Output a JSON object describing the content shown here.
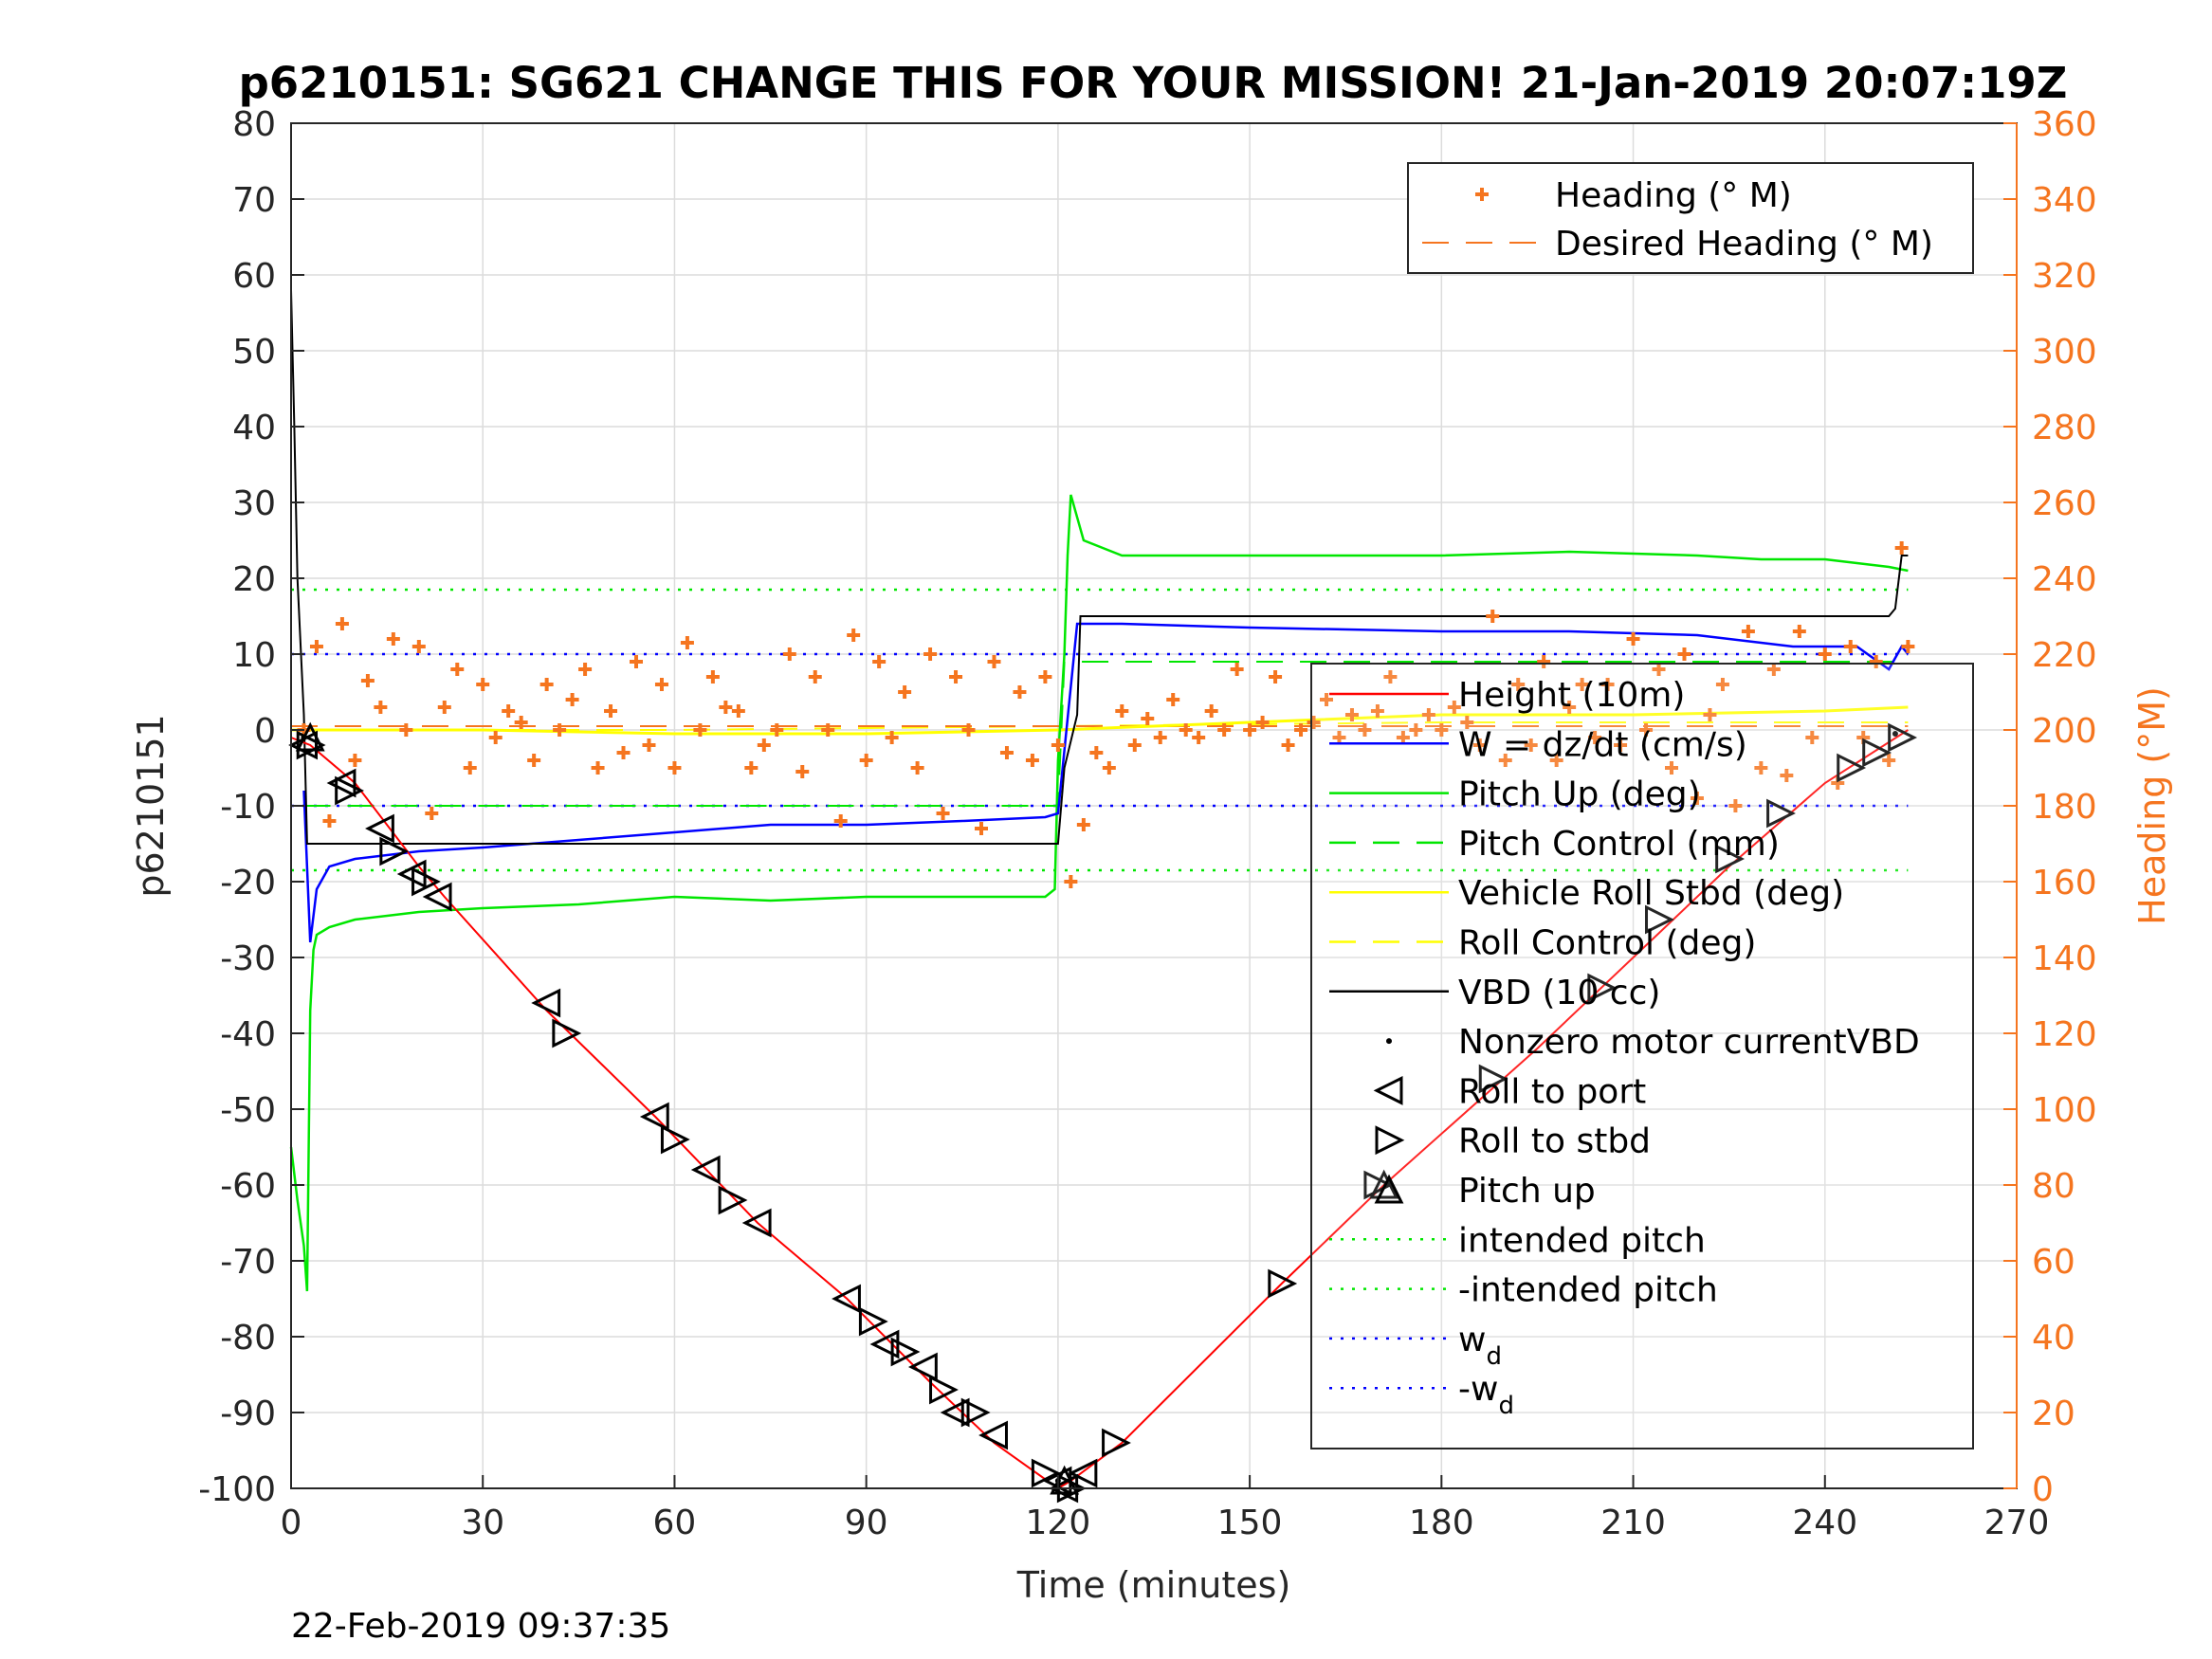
{
  "chart_data": {
    "type": "line",
    "title": "p6210151: SG621 CHANGE THIS FOR YOUR MISSION! 21-Jan-2019 20:07:19Z",
    "xlabel": "Time (minutes)",
    "ylabel": "p6210151",
    "y2label": "Heading (°M)",
    "timestamp": "22-Feb-2019 09:37:35",
    "xlim": [
      0,
      270
    ],
    "ylim": [
      -100,
      80
    ],
    "y2lim": [
      0,
      360
    ],
    "xticks": [
      "0",
      "30",
      "60",
      "90",
      "120",
      "150",
      "180",
      "210",
      "240",
      "270"
    ],
    "yticks": [
      "80",
      "70",
      "60",
      "50",
      "40",
      "30",
      "20",
      "10",
      "0",
      "-10",
      "-20",
      "-30",
      "-40",
      "-50",
      "-60",
      "-70",
      "-80",
      "-90",
      "-100"
    ],
    "y2ticks": [
      "360",
      "340",
      "320",
      "300",
      "280",
      "260",
      "240",
      "220",
      "200",
      "180",
      "160",
      "140",
      "120",
      "100",
      "80",
      "60",
      "40",
      "20",
      "0"
    ],
    "grid": true,
    "colors": {
      "heading": "#F5751F",
      "height": "#FF0000",
      "w": "#0000FF",
      "pitch": "#00E600",
      "roll": "#FFFF00",
      "vbd": "#000000"
    },
    "legend_heading": [
      {
        "label": "Heading (° M)"
      },
      {
        "label": "Desired Heading (° M)"
      }
    ],
    "legend_main": [
      {
        "label": "Height (10m)"
      },
      {
        "label": "W = dz/dt (cm/s)"
      },
      {
        "label": "Pitch Up (deg)"
      },
      {
        "label": "Pitch Control (mm)"
      },
      {
        "label": "Vehicle Roll Stbd (deg)"
      },
      {
        "label": "Roll Control (deg)"
      },
      {
        "label": "VBD (10 cc)"
      },
      {
        "label": "Nonzero motor currentVBD"
      },
      {
        "label": "Roll to port"
      },
      {
        "label": "Roll to stbd"
      },
      {
        "label": "Pitch up"
      },
      {
        "label": "intended pitch"
      },
      {
        "label": "-intended pitch"
      },
      {
        "label": "w",
        "sub": "d"
      },
      {
        "label": "-w",
        "sub": "d"
      }
    ],
    "series": [
      {
        "name": "Height (10m)",
        "x": [
          0,
          3,
          10,
          20,
          24,
          40,
          57,
          73,
          87,
          100,
          110,
          120,
          122,
          130,
          155,
          171,
          195,
          210,
          225,
          240,
          253
        ],
        "y": [
          -1,
          -2,
          -7,
          -18,
          -22,
          -37,
          -51,
          -65,
          -75,
          -86,
          -94,
          -100,
          -99,
          -94,
          -73,
          -60,
          -42,
          -30,
          -18,
          -7,
          0
        ]
      },
      {
        "name": "W = dz/dt (cm/s)",
        "x": [
          2,
          3,
          4,
          6,
          10,
          20,
          30,
          45,
          60,
          75,
          90,
          105,
          118,
          120,
          123,
          130,
          150,
          180,
          200,
          220,
          235,
          245,
          250,
          252,
          253
        ],
        "y": [
          -8,
          -28,
          -21,
          -18,
          -17,
          -16,
          -15.5,
          -14.5,
          -13.5,
          -12.5,
          -12.5,
          -12,
          -11.5,
          -11,
          14,
          14,
          13.5,
          13,
          13,
          12.5,
          11,
          11,
          8,
          11,
          10
        ]
      },
      {
        "name": "Pitch Up (deg)",
        "x": [
          0,
          1,
          2,
          2.5,
          3,
          3.5,
          4,
          6,
          10,
          20,
          30,
          45,
          60,
          75,
          90,
          105,
          118,
          119.5,
          120,
          121,
          121.5,
          122,
          124,
          130,
          150,
          180,
          200,
          220,
          230,
          240,
          245,
          250,
          253
        ],
        "y": [
          -55,
          -62,
          -68,
          -74,
          -37,
          -29,
          -27,
          -26,
          -25,
          -24,
          -23.5,
          -23,
          -22,
          -22.5,
          -22,
          -22,
          -22,
          -21,
          -4,
          10,
          23,
          31,
          25,
          23,
          23,
          23,
          23.5,
          23,
          22.5,
          22.5,
          22,
          21.5,
          21
        ]
      },
      {
        "name": "Pitch Control (mm)",
        "x": [
          2,
          120,
          121,
          253
        ],
        "y": [
          -10,
          -10,
          9,
          9
        ]
      },
      {
        "name": "Vehicle Roll Stbd (deg)",
        "x": [
          0,
          10,
          30,
          60,
          90,
          120,
          150,
          180,
          210,
          240,
          253
        ],
        "y": [
          0,
          0,
          0,
          -0.5,
          -0.5,
          0,
          1,
          2,
          2,
          2.5,
          3
        ]
      },
      {
        "name": "Roll Control (deg)",
        "x": [
          0,
          60,
          120,
          180,
          240,
          253
        ],
        "y": [
          0,
          0,
          0.5,
          1,
          1,
          1
        ]
      },
      {
        "name": "VBD (10 cc)",
        "x": [
          0,
          0.5,
          1,
          2,
          2.5,
          3,
          119,
          120,
          121,
          123,
          123.5,
          250,
          251,
          252,
          253
        ],
        "y": [
          58,
          40,
          20,
          2,
          -15,
          -15,
          -15,
          -15,
          -5,
          2,
          15,
          15,
          16,
          23,
          23
        ]
      },
      {
        "name": "intended pitch",
        "x": [
          0,
          253
        ],
        "y": [
          18.5,
          18.5
        ]
      },
      {
        "name": "-intended pitch",
        "x": [
          0,
          253
        ],
        "y": [
          -18.5,
          -18.5
        ]
      },
      {
        "name": "w_d",
        "x": [
          0,
          253
        ],
        "y": [
          10,
          10
        ]
      },
      {
        "name": "-w_d",
        "x": [
          0,
          253
        ],
        "y": [
          -10,
          -10
        ]
      },
      {
        "name": "Heading (° M)",
        "axis": "right",
        "x": [
          2,
          4,
          6,
          8,
          10,
          12,
          14,
          16,
          18,
          20,
          22,
          24,
          26,
          28,
          30,
          32,
          34,
          36,
          38,
          40,
          42,
          44,
          46,
          48,
          50,
          52,
          54,
          56,
          58,
          60,
          62,
          64,
          66,
          68,
          70,
          72,
          74,
          76,
          78,
          80,
          82,
          84,
          86,
          88,
          90,
          92,
          94,
          96,
          98,
          100,
          102,
          104,
          106,
          108,
          110,
          112,
          114,
          116,
          118,
          120,
          122,
          124,
          126,
          128,
          130,
          132,
          134,
          136,
          138,
          140,
          142,
          144,
          146,
          148,
          150,
          152,
          154,
          156,
          158,
          160,
          162,
          164,
          166,
          168,
          170,
          172,
          174,
          176,
          178,
          180,
          182,
          184,
          186,
          188,
          190,
          192,
          194,
          196,
          198,
          200,
          202,
          204,
          206,
          208,
          210,
          212,
          214,
          216,
          218,
          220,
          222,
          224,
          226,
          228,
          230,
          232,
          234,
          236,
          238,
          240,
          242,
          244,
          246,
          248,
          250,
          252,
          253
        ],
        "y": [
          200,
          222,
          176,
          228,
          192,
          213,
          206,
          224,
          200,
          222,
          178,
          206,
          216,
          190,
          212,
          198,
          205,
          202,
          192,
          212,
          200,
          208,
          216,
          190,
          205,
          194,
          218,
          196,
          212,
          190,
          223,
          200,
          214,
          206,
          205,
          190,
          196,
          200,
          220,
          189,
          214,
          200,
          176,
          225,
          192,
          218,
          198,
          210,
          190,
          220,
          178,
          214,
          200,
          174,
          218,
          194,
          210,
          192,
          214,
          196,
          160,
          175,
          194,
          190,
          205,
          196,
          203,
          198,
          208,
          200,
          198,
          205,
          200,
          216,
          200,
          202,
          214,
          196,
          200,
          202,
          208,
          198,
          204,
          200,
          205,
          214,
          198,
          200,
          204,
          200,
          206,
          202,
          196,
          230,
          192,
          212,
          196,
          218,
          192,
          206,
          212,
          198,
          212,
          196,
          224,
          200,
          216,
          190,
          220,
          182,
          204,
          212,
          180,
          226,
          190,
          216,
          188,
          226,
          198,
          220,
          186,
          222,
          198,
          218,
          192,
          248,
          222
        ]
      },
      {
        "name": "Desired Heading (° M)",
        "axis": "right",
        "x": [
          0,
          253
        ],
        "y": [
          201,
          201
        ]
      }
    ],
    "markers": {
      "roll_to_port": {
        "x": [
          2,
          8,
          14,
          19,
          23,
          40,
          57,
          65,
          73,
          87,
          93,
          99,
          104,
          110,
          120,
          121,
          124
        ],
        "y": [
          -2,
          -7,
          -13,
          -19,
          -22,
          -36,
          -51,
          -58,
          -65,
          -75,
          -81,
          -84,
          -90,
          -93,
          -99,
          -100,
          -98
        ]
      },
      "roll_to_stbd": {
        "x": [
          3,
          9,
          16,
          21,
          43,
          60,
          69,
          91,
          96,
          102,
          107,
          118,
          122,
          129,
          155,
          170,
          188,
          205,
          214,
          225,
          233,
          244,
          248,
          252
        ],
        "y": [
          -2,
          -8,
          -16,
          -20,
          -40,
          -54,
          -62,
          -78,
          -82,
          -87,
          -90,
          -98,
          -100,
          -94,
          -73,
          -60,
          -46,
          -34,
          -25,
          -17,
          -11,
          -5,
          -3,
          -1
        ]
      },
      "pitch_up": {
        "x": [
          3,
          121,
          171
        ],
        "y": [
          -1,
          -99,
          -60
        ]
      },
      "vbd_motor": {
        "x": [
          2,
          120,
          251
        ],
        "y": [
          -1,
          -99,
          -0.5
        ]
      }
    }
  }
}
